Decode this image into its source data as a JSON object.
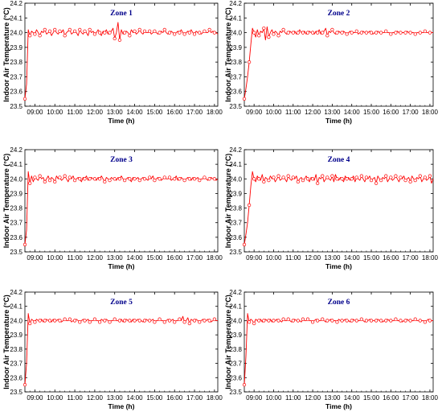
{
  "colors": {
    "series": "#ff0000",
    "title": "#00008b",
    "axis": "#000000"
  },
  "chart_data": [
    {
      "type": "line",
      "title": "Zone 1",
      "xlabel": "Time (h)",
      "ylabel": "",
      "xticks": [
        "09:00",
        "10:00",
        "11:00",
        "12:00",
        "13:00",
        "14:00",
        "15:00",
        "16:00",
        "17:00",
        "18:00"
      ],
      "yticks": [
        "23.5",
        "23.6",
        "23.7",
        "23.8",
        "23.9",
        "24.0",
        "24.1",
        "24.2"
      ],
      "xlim": [
        "08:30",
        "18:10"
      ],
      "ylim": [
        23.5,
        24.2
      ],
      "series": [
        {
          "start": "08:30",
          "interval_min": 5,
          "y": [
            23.55,
            23.65,
            24.02,
            23.98,
            24.01,
            24.0,
            23.99,
            24.02,
            24.0,
            23.98,
            24.01,
            24.0,
            24.02,
            23.99,
            24.0,
            24.01,
            23.98,
            24.0,
            24.02,
            24.0,
            23.99,
            24.01,
            24.0,
            24.02,
            23.98,
            24.0,
            24.01,
            24.02,
            23.99,
            24.0,
            24.01,
            24.0,
            23.98,
            24.02,
            24.0,
            23.99,
            24.01,
            24.0,
            23.98,
            24.02,
            24.0,
            24.01,
            23.99,
            24.0,
            24.02,
            24.0,
            23.98,
            24.01,
            24.0,
            24.02,
            23.99,
            24.0,
            24.01,
            24.03,
            23.96,
            24.0,
            24.07,
            23.95,
            24.02,
            23.99,
            24.0,
            24.01,
            24.0,
            23.98,
            24.02,
            24.0,
            24.01,
            23.99,
            24.0,
            24.02,
            24.0,
            23.99,
            24.01,
            24.0,
            24.0,
            24.01,
            23.99,
            24.0,
            24.01,
            24.0,
            23.99,
            24.0,
            24.01,
            24.0,
            24.02,
            24.0,
            23.99,
            24.0,
            24.01,
            24.0,
            23.99,
            24.0,
            24.01,
            24.0,
            24.02,
            24.0,
            23.99,
            24.0,
            24.01,
            24.0,
            24.02,
            24.0,
            23.99,
            24.01,
            24.0,
            24.0,
            23.99,
            24.0,
            24.01,
            24.0,
            24.0,
            24.02,
            24.0,
            24.01,
            24.0,
            24.0,
            23.99
          ]
        }
      ]
    },
    {
      "type": "line",
      "title": "Zone 2",
      "xlabel": "Time (h)",
      "ylabel": "",
      "xticks": [
        "09:00",
        "10:00",
        "11:00",
        "12:00",
        "13:00",
        "14:00",
        "15:00",
        "16:00",
        "17:00",
        "18:00"
      ],
      "yticks": [
        "23.5",
        "23.6",
        "23.7",
        "23.8",
        "23.9",
        "24.0",
        "24.1",
        "24.2"
      ],
      "xlim": [
        "08:30",
        "18:10"
      ],
      "ylim": [
        23.5,
        24.2
      ],
      "series": [
        {
          "start": "08:30",
          "interval_min": 5,
          "y": [
            23.55,
            23.62,
            23.7,
            23.8,
            23.92,
            24.03,
            24.0,
            23.97,
            24.02,
            23.98,
            24.01,
            24.0,
            24.03,
            23.95,
            24.04,
            23.97,
            24.0,
            24.02,
            23.99,
            24.01,
            24.0,
            23.98,
            24.01,
            24.0,
            24.02,
            24.0,
            23.99,
            24.0,
            24.01,
            24.0,
            24.0,
            24.01,
            23.99,
            24.0,
            24.02,
            24.0,
            24.0,
            24.01,
            23.99,
            24.0,
            24.01,
            24.0,
            24.0,
            23.99,
            24.01,
            24.0,
            24.02,
            23.99,
            24.0,
            24.01,
            24.03,
            23.98,
            24.01,
            24.0,
            24.02,
            24.0,
            23.99,
            24.0,
            24.01,
            24.0,
            24.0,
            24.01,
            24.0,
            23.99,
            24.0,
            24.01,
            24.0,
            24.0,
            24.0,
            24.01,
            23.99,
            24.0,
            24.0,
            24.01,
            24.0,
            24.0,
            24.0,
            24.01,
            24.0,
            23.99,
            24.0,
            24.0,
            24.01,
            24.0,
            24.0,
            24.0,
            24.0,
            24.01,
            24.0,
            24.0,
            23.99,
            24.0,
            24.0,
            24.0,
            24.01,
            24.0,
            24.0,
            24.0,
            24.0,
            24.0,
            24.01,
            24.0,
            24.0,
            24.0,
            24.0,
            23.99,
            24.0,
            24.0,
            24.0,
            24.0,
            24.0,
            24.01,
            24.0,
            24.0,
            24.0,
            24.0,
            24.0
          ]
        }
      ]
    },
    {
      "type": "line",
      "title": "Zone 3",
      "xlabel": "Time (h)",
      "ylabel": "",
      "xticks": [
        "09:00",
        "10:00",
        "11:00",
        "12:00",
        "13:00",
        "14:00",
        "15:00",
        "16:00",
        "17:00",
        "18:00"
      ],
      "yticks": [
        "23.5",
        "23.6",
        "23.7",
        "23.8",
        "23.9",
        "24.0",
        "24.1",
        "24.2"
      ],
      "xlim": [
        "08:30",
        "18:10"
      ],
      "ylim": [
        23.5,
        24.2
      ],
      "series": [
        {
          "start": "08:30",
          "interval_min": 5,
          "y": [
            23.55,
            23.65,
            24.05,
            23.97,
            24.02,
            23.98,
            24.01,
            24.0,
            23.99,
            24.02,
            24.0,
            24.01,
            23.98,
            24.0,
            24.02,
            23.99,
            24.01,
            24.0,
            23.98,
            24.02,
            24.0,
            24.01,
            23.99,
            24.0,
            24.02,
            24.0,
            23.98,
            24.01,
            24.0,
            24.02,
            23.99,
            24.0,
            24.01,
            24.0,
            23.98,
            24.01,
            24.0,
            24.02,
            23.99,
            24.0,
            24.01,
            24.0,
            24.0,
            23.99,
            24.01,
            24.0,
            24.02,
            24.0,
            23.98,
            24.01,
            24.0,
            23.99,
            24.01,
            24.0,
            24.0,
            23.99,
            24.01,
            24.0,
            24.02,
            24.0,
            23.99,
            24.0,
            24.01,
            24.0,
            23.98,
            24.01,
            24.0,
            24.0,
            24.01,
            23.99,
            24.0,
            24.01,
            24.0,
            24.0,
            23.99,
            24.01,
            24.0,
            24.02,
            23.99,
            24.0,
            24.01,
            24.0,
            23.99,
            24.0,
            24.01,
            24.0,
            24.0,
            24.01,
            23.99,
            24.0,
            24.0,
            24.02,
            23.99,
            24.0,
            24.01,
            24.0,
            23.99,
            24.0,
            24.01,
            24.0,
            23.99,
            24.01,
            24.0,
            24.0,
            24.01,
            23.99,
            24.0,
            24.0,
            24.01,
            24.0,
            23.99,
            24.0,
            24.01,
            24.0,
            24.0,
            23.99,
            24.0
          ]
        }
      ]
    },
    {
      "type": "line",
      "title": "Zone 4",
      "xlabel": "Time (h)",
      "ylabel": "",
      "xticks": [
        "09:00",
        "10:00",
        "11:00",
        "12:00",
        "13:00",
        "14:00",
        "15:00",
        "16:00",
        "17:00",
        "18:00"
      ],
      "yticks": [
        "23.5",
        "23.6",
        "23.7",
        "23.8",
        "23.9",
        "24.0",
        "24.1",
        "24.2"
      ],
      "xlim": [
        "08:30",
        "18:10"
      ],
      "ylim": [
        23.5,
        24.2
      ],
      "series": [
        {
          "start": "08:30",
          "interval_min": 5,
          "y": [
            23.55,
            23.62,
            23.7,
            23.82,
            23.95,
            24.05,
            24.0,
            23.98,
            24.02,
            24.0,
            23.99,
            24.03,
            23.98,
            24.01,
            24.0,
            23.99,
            24.02,
            24.0,
            24.01,
            23.98,
            24.0,
            24.02,
            23.99,
            24.0,
            24.01,
            24.0,
            23.98,
            24.02,
            24.0,
            23.99,
            24.01,
            24.0,
            24.02,
            23.98,
            24.0,
            24.01,
            23.99,
            24.0,
            24.02,
            24.0,
            23.98,
            24.01,
            24.0,
            23.99,
            24.03,
            23.97,
            24.01,
            24.0,
            24.02,
            23.98,
            24.0,
            24.01,
            24.0,
            23.99,
            24.02,
            23.98,
            24.03,
            24.0,
            23.99,
            24.01,
            24.0,
            23.98,
            24.02,
            24.0,
            24.01,
            23.99,
            24.0,
            24.02,
            23.98,
            24.01,
            24.0,
            23.99,
            24.02,
            24.0,
            23.98,
            24.01,
            24.0,
            24.02,
            23.99,
            24.0,
            24.01,
            23.97,
            24.02,
            24.0,
            23.99,
            24.01,
            24.0,
            24.02,
            23.98,
            24.0,
            24.01,
            23.99,
            24.0,
            24.02,
            24.0,
            23.98,
            24.01,
            24.0,
            24.02,
            23.99,
            24.0,
            24.01,
            23.98,
            24.02,
            24.0,
            23.99,
            24.01,
            24.0,
            24.02,
            23.98,
            24.0,
            24.01,
            23.99,
            24.0,
            24.02,
            23.97,
            24.0
          ]
        }
      ]
    },
    {
      "type": "line",
      "title": "Zone 5",
      "xlabel": "Time (h)",
      "ylabel": "",
      "xticks": [
        "09:00",
        "10:00",
        "11:00",
        "12:00",
        "13:00",
        "14:00",
        "15:00",
        "16:00",
        "17:00",
        "18:00"
      ],
      "yticks": [
        "23.5",
        "23.6",
        "23.7",
        "23.8",
        "23.9",
        "24.0",
        "24.1",
        "24.2"
      ],
      "xlim": [
        "08:30",
        "18:10"
      ],
      "ylim": [
        23.5,
        24.2
      ],
      "series": [
        {
          "start": "08:30",
          "interval_min": 5,
          "y": [
            23.55,
            23.7,
            24.05,
            23.98,
            24.01,
            24.0,
            23.99,
            24.01,
            24.0,
            24.0,
            24.01,
            23.99,
            24.0,
            24.01,
            24.0,
            24.0,
            23.99,
            24.01,
            24.0,
            24.0,
            24.01,
            24.0,
            23.99,
            24.0,
            24.01,
            24.0,
            24.0,
            24.01,
            23.99,
            24.0,
            24.0,
            24.01,
            24.0,
            23.99,
            24.0,
            24.01,
            24.0,
            24.0,
            24.01,
            23.99,
            24.0,
            24.0,
            24.01,
            24.0,
            24.0,
            23.99,
            24.01,
            24.0,
            24.0,
            24.01,
            24.0,
            23.99,
            24.0,
            24.0,
            24.01,
            24.0,
            24.0,
            24.0,
            24.01,
            23.99,
            24.0,
            24.01,
            24.0,
            24.0,
            23.99,
            24.01,
            24.0,
            24.0,
            24.01,
            24.0,
            24.0,
            23.99,
            24.0,
            24.01,
            24.0,
            24.0,
            24.0,
            24.01,
            23.99,
            24.0,
            24.0,
            24.01,
            24.0,
            24.0,
            23.99,
            24.0,
            24.01,
            24.0,
            24.0,
            24.01,
            23.99,
            24.0,
            24.0,
            24.01,
            24.0,
            24.03,
            23.99,
            24.0,
            24.02,
            23.98,
            24.01,
            24.0,
            24.0,
            24.01,
            24.0,
            23.99,
            24.0,
            24.01,
            24.0,
            24.0,
            24.01,
            24.0,
            23.99,
            24.0,
            24.01,
            24.0,
            24.0
          ]
        }
      ]
    },
    {
      "type": "line",
      "title": "Zone 6",
      "xlabel": "Time (h)",
      "ylabel": "",
      "xticks": [
        "09:00",
        "10:00",
        "11:00",
        "12:00",
        "13:00",
        "14:00",
        "15:00",
        "16:00",
        "17:00",
        "18:00"
      ],
      "yticks": [
        "23.5",
        "23.6",
        "23.7",
        "23.8",
        "23.9",
        "24.0",
        "24.1",
        "24.2"
      ],
      "xlim": [
        "08:30",
        "18:10"
      ],
      "ylim": [
        23.5,
        24.2
      ],
      "series": [
        {
          "start": "08:30",
          "interval_min": 5,
          "y": [
            23.55,
            23.75,
            24.05,
            23.99,
            24.01,
            24.0,
            23.98,
            24.01,
            24.0,
            24.0,
            24.01,
            23.99,
            24.0,
            24.01,
            24.0,
            24.0,
            24.01,
            23.99,
            24.0,
            24.0,
            24.01,
            24.0,
            24.0,
            23.99,
            24.01,
            24.0,
            24.0,
            24.01,
            24.0,
            23.99,
            24.0,
            24.01,
            24.0,
            24.0,
            24.0,
            23.99,
            24.01,
            24.0,
            24.0,
            24.01,
            24.0,
            24.0,
            23.99,
            24.0,
            24.01,
            24.0,
            24.0,
            24.0,
            24.01,
            24.0,
            23.99,
            24.0,
            24.0,
            24.01,
            24.0,
            24.0,
            24.0,
            23.99,
            24.01,
            24.0,
            24.0,
            24.0,
            24.01,
            24.0,
            24.0,
            23.99,
            24.0,
            24.01,
            24.0,
            24.0,
            24.0,
            24.0,
            24.01,
            24.0,
            23.99,
            24.0,
            24.0,
            24.01,
            24.0,
            24.0,
            24.0,
            24.0,
            24.01,
            24.0,
            24.0,
            23.99,
            24.0,
            24.0,
            24.01,
            24.0,
            24.0,
            24.0,
            24.0,
            24.01,
            24.0,
            24.0,
            24.0,
            23.99,
            24.0,
            24.0,
            24.01,
            24.0,
            24.0,
            24.0,
            24.0,
            24.01,
            24.0,
            24.0,
            24.0,
            24.0,
            24.0,
            23.99,
            24.0,
            24.01,
            24.0,
            24.0,
            24.0
          ]
        }
      ]
    }
  ],
  "shared": {
    "ylabel": "Indoor Air Temperature (°C)"
  }
}
